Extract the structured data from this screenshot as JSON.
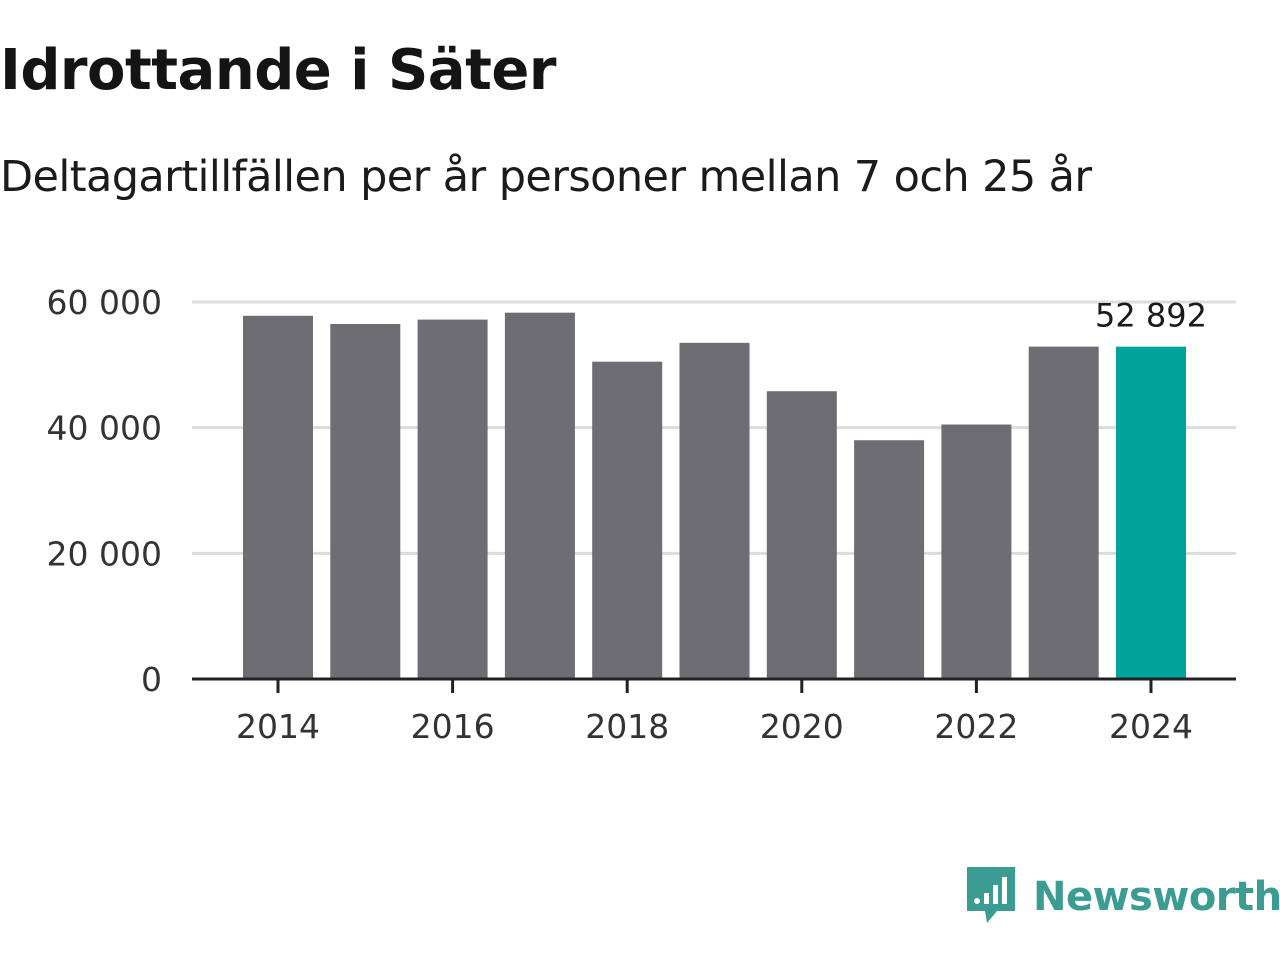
{
  "header": {
    "title": "Idrottande i Säter",
    "subtitle": "Deltagartillfällen per år personer mellan 7 och 25 år"
  },
  "brand": {
    "name": "Newsworthy",
    "icon": "newsworthy-logo-icon"
  },
  "colors": {
    "bar": "#6e6d74",
    "highlight": "#00a49b",
    "grid": "#dcdcdc",
    "axis": "#222222",
    "brand": "#3a9c92"
  },
  "chart_data": {
    "type": "bar",
    "title": "Idrottande i Säter",
    "subtitle": "Deltagartillfällen per år personer mellan 7 och 25 år",
    "xlabel": "",
    "ylabel": "",
    "categories": [
      "2014",
      "2015",
      "2016",
      "2017",
      "2018",
      "2019",
      "2020",
      "2021",
      "2022",
      "2023",
      "2024"
    ],
    "values": [
      57800,
      56500,
      57200,
      58300,
      50500,
      53500,
      45800,
      38000,
      40500,
      52900,
      52892
    ],
    "highlight_index": 10,
    "ylim": [
      0,
      60000
    ],
    "yticks": [
      0,
      20000,
      40000,
      60000
    ],
    "ytick_labels": [
      "0",
      "20 000",
      "40 000",
      "60 000"
    ],
    "xtick_labels": [
      "2014",
      "2016",
      "2018",
      "2020",
      "2022",
      "2024"
    ],
    "annotation": "52 892",
    "grid": true
  }
}
